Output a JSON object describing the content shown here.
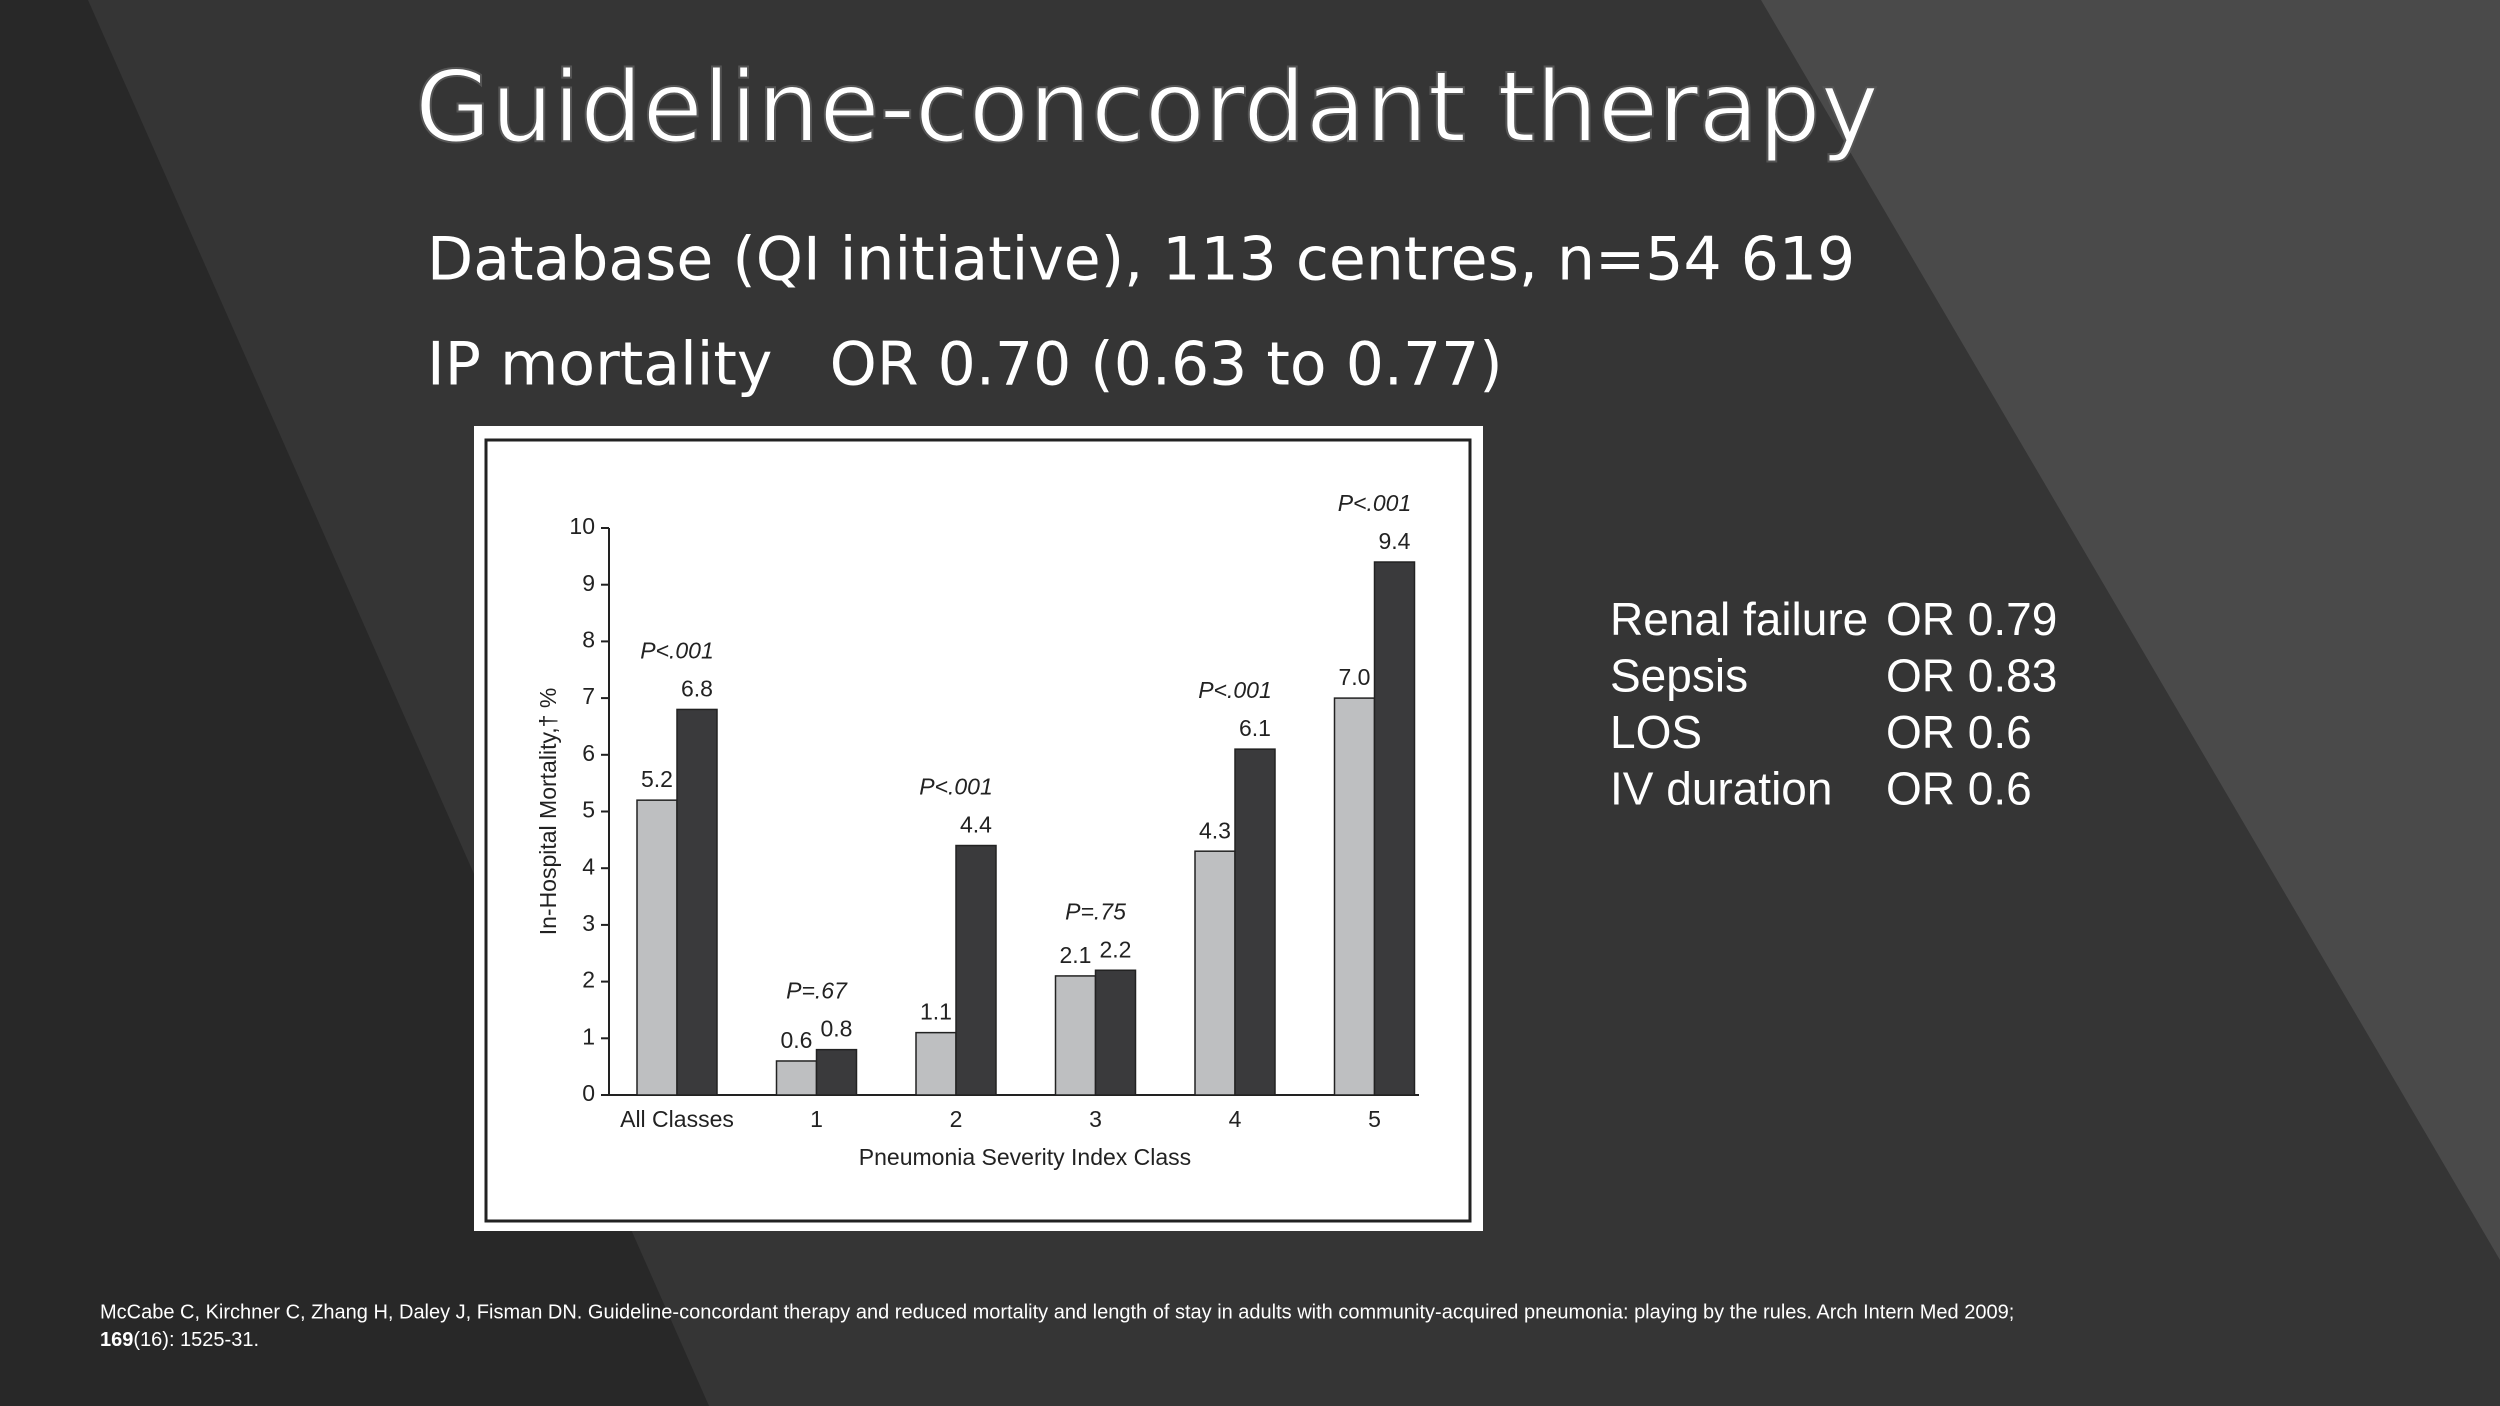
{
  "title": "Guideline-concordant therapy",
  "subtitle_lines": [
    "Database (QI initiative), 113 centres, n=54 619",
    "IP mortality   OR 0.70 (0.63 to 0.77)"
  ],
  "outcomes": [
    [
      "Renal failure",
      "OR 0.79"
    ],
    [
      "Sepsis",
      "OR 0.83"
    ],
    [
      "LOS",
      "OR 0.6"
    ],
    [
      "IV duration",
      "OR 0.6"
    ]
  ],
  "citation": {
    "line1": "McCabe C, Kirchner C, Zhang H, Daley J, Fisman DN. Guideline-concordant therapy and reduced mortality and length of stay in adults with community-acquired pneumonia: playing by the rules. Arch Intern Med 2009;",
    "volume": "169",
    "pages": "(16): 1525-31."
  },
  "chart_data": {
    "type": "bar",
    "x_label": "Pneumonia Severity Index Class",
    "y_label": "In-Hospital Mortality,† %",
    "categories": [
      "All Classes",
      "1",
      "2",
      "3",
      "4",
      "5"
    ],
    "series": [
      {
        "color": "#bebfc1",
        "values": [
          5.2,
          0.6,
          1.1,
          2.1,
          4.3,
          7.0
        ],
        "value_labels": [
          "5.2",
          "0.6",
          "1.1",
          "2.1",
          "4.3",
          "7.0"
        ]
      },
      {
        "color": "#3a3a3c",
        "values": [
          6.8,
          0.8,
          4.4,
          2.2,
          6.1,
          9.4
        ],
        "value_labels": [
          "6.8",
          "0.8",
          "4.4",
          "2.2",
          "6.1",
          "9.4"
        ]
      }
    ],
    "p_values": [
      "P<.001",
      "P=.67",
      "P<.001",
      "P=.75",
      "P<.001",
      "P<.001"
    ],
    "ylim": [
      0,
      10
    ],
    "yticks": [
      0,
      1,
      2,
      3,
      4,
      5,
      6,
      7,
      8,
      9,
      10
    ]
  }
}
